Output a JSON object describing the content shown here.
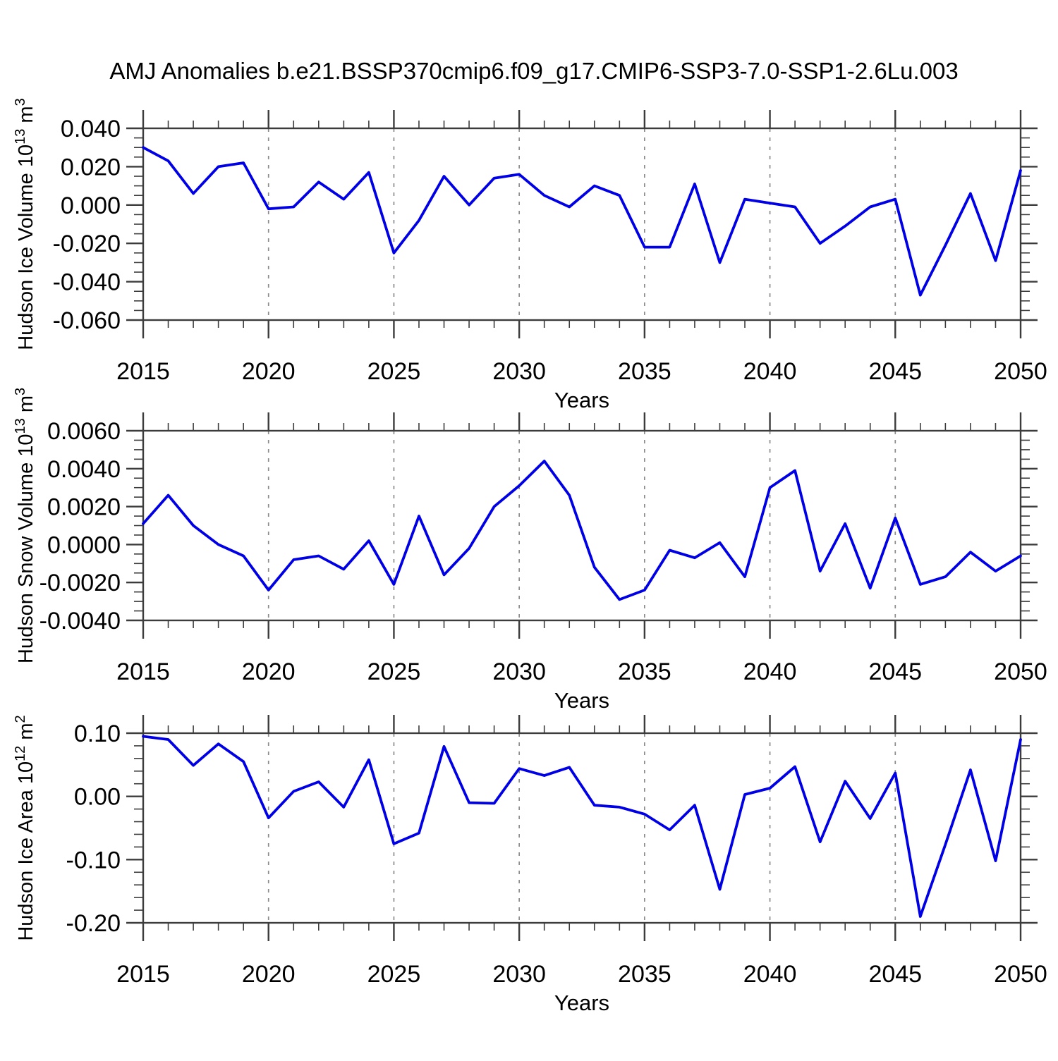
{
  "title": "AMJ Anomalies b.e21.BSSP370cmip6.f09_g17.CMIP6-SSP3-7.0-SSP1-2.6Lu.003",
  "colors": {
    "line": "#0000e6",
    "grid": "#8c8c8c",
    "axis": "#3c3c3c",
    "text": "#000000",
    "background": "#ffffff"
  },
  "x_axis": {
    "label": "Years",
    "start": 2015,
    "end": 2050,
    "major_step": 5,
    "minor_step": 1,
    "tick_labels": [
      "2015",
      "2020",
      "2025",
      "2030",
      "2035",
      "2040",
      "2045",
      "2050"
    ],
    "grid_years": [
      2020,
      2025,
      2030,
      2035,
      2040,
      2045
    ]
  },
  "chart_data": [
    {
      "type": "line",
      "name": "hudson-ice-volume",
      "ylabel": "Hudson Ice Volume 10^13 m^3",
      "ylabel_rich": [
        [
          "Hudson Ice Volume 10",
          false
        ],
        [
          "13",
          true
        ],
        [
          " m",
          false
        ],
        [
          "3",
          true
        ]
      ],
      "xlabel": "Years",
      "ylim": [
        -0.06,
        0.04
      ],
      "ymajor_step": 0.02,
      "yminor_step": 0.005,
      "ytick_labels": [
        "0.040",
        "0.020",
        "0.000",
        "-0.020",
        "-0.040",
        "-0.060"
      ],
      "grid": "vertical-dashed",
      "legend": "none",
      "years": [
        2015,
        2016,
        2017,
        2018,
        2019,
        2020,
        2021,
        2022,
        2023,
        2024,
        2025,
        2026,
        2027,
        2028,
        2029,
        2030,
        2031,
        2032,
        2033,
        2034,
        2035,
        2036,
        2037,
        2038,
        2039,
        2040,
        2041,
        2042,
        2043,
        2044,
        2045,
        2046,
        2047,
        2048,
        2049,
        2050
      ],
      "values": [
        0.03,
        0.023,
        0.006,
        0.02,
        0.022,
        -0.002,
        -0.001,
        0.012,
        0.003,
        0.017,
        -0.025,
        -0.008,
        0.015,
        0.0,
        0.014,
        0.016,
        0.005,
        -0.001,
        0.01,
        0.005,
        -0.022,
        -0.022,
        0.011,
        -0.03,
        0.003,
        0.001,
        -0.001,
        -0.02,
        -0.011,
        -0.001,
        0.003,
        -0.047,
        -0.021,
        0.006,
        -0.029,
        0.018
      ]
    },
    {
      "type": "line",
      "name": "hudson-snow-volume",
      "ylabel": "Hudson Snow Volume 10^13 m^3",
      "ylabel_rich": [
        [
          "Hudson Snow Volume 10",
          false
        ],
        [
          "13",
          true
        ],
        [
          " m",
          false
        ],
        [
          "3",
          true
        ]
      ],
      "xlabel": "Years",
      "ylim": [
        -0.004,
        0.006
      ],
      "ymajor_step": 0.002,
      "yminor_step": 0.0005,
      "ytick_labels": [
        "0.0060",
        "0.0040",
        "0.0020",
        "0.0000",
        "-0.0020",
        "-0.0040"
      ],
      "grid": "vertical-dashed",
      "legend": "none",
      "years": [
        2015,
        2016,
        2017,
        2018,
        2019,
        2020,
        2021,
        2022,
        2023,
        2024,
        2025,
        2026,
        2027,
        2028,
        2029,
        2030,
        2031,
        2032,
        2033,
        2034,
        2035,
        2036,
        2037,
        2038,
        2039,
        2040,
        2041,
        2042,
        2043,
        2044,
        2045,
        2046,
        2047,
        2048,
        2049,
        2050
      ],
      "values": [
        0.0011,
        0.0026,
        0.001,
        0.0,
        -0.0006,
        -0.0024,
        -0.0008,
        -0.0006,
        -0.0013,
        0.0002,
        -0.0021,
        0.0015,
        -0.0016,
        -0.0002,
        0.002,
        0.0031,
        0.0044,
        0.0026,
        -0.0012,
        -0.0029,
        -0.0024,
        -0.0003,
        -0.0007,
        0.0001,
        -0.0017,
        0.003,
        0.0039,
        -0.0014,
        0.0011,
        -0.0023,
        0.0014,
        -0.0021,
        -0.0017,
        -0.0004,
        -0.0014,
        -0.0006
      ]
    },
    {
      "type": "line",
      "name": "hudson-ice-area",
      "ylabel": "Hudson Ice Area 10^12 m^2",
      "ylabel_rich": [
        [
          "Hudson Ice Area 10",
          false
        ],
        [
          "12",
          true
        ],
        [
          " m",
          false
        ],
        [
          "2",
          true
        ]
      ],
      "xlabel": "Years",
      "ylim": [
        -0.2,
        0.1
      ],
      "ymajor_step": 0.1,
      "yminor_step": 0.02,
      "ytick_labels": [
        "0.10",
        "0.00",
        "-0.10",
        "-0.20"
      ],
      "grid": "vertical-dashed",
      "legend": "none",
      "years": [
        2015,
        2016,
        2017,
        2018,
        2019,
        2020,
        2021,
        2022,
        2023,
        2024,
        2025,
        2026,
        2027,
        2028,
        2029,
        2030,
        2031,
        2032,
        2033,
        2034,
        2035,
        2036,
        2037,
        2038,
        2039,
        2040,
        2041,
        2042,
        2043,
        2044,
        2045,
        2046,
        2047,
        2048,
        2049,
        2050
      ],
      "values": [
        0.095,
        0.09,
        0.049,
        0.083,
        0.055,
        -0.034,
        0.008,
        0.023,
        -0.017,
        0.058,
        -0.075,
        -0.058,
        0.079,
        -0.01,
        -0.011,
        0.044,
        0.033,
        0.046,
        -0.014,
        -0.017,
        -0.028,
        -0.053,
        -0.014,
        -0.147,
        0.003,
        0.013,
        0.047,
        -0.072,
        0.024,
        -0.035,
        0.037,
        -0.19,
        -0.076,
        0.042,
        -0.102,
        0.09
      ]
    }
  ]
}
